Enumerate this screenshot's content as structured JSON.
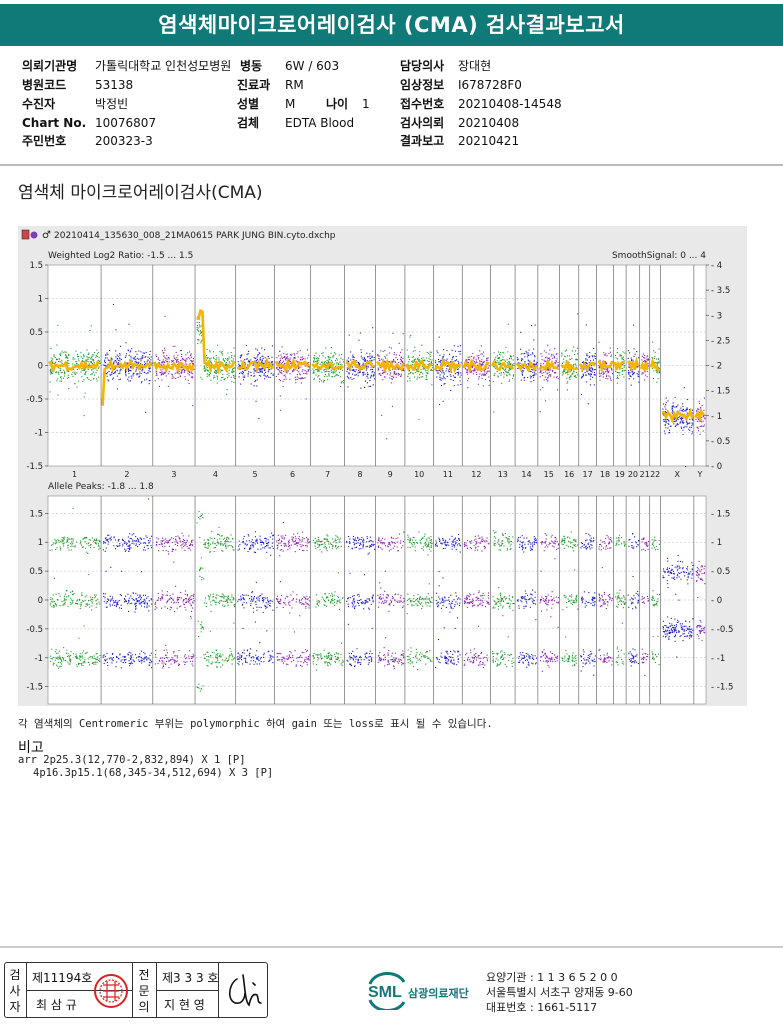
{
  "header": {
    "title": "염색체마이크로어레이검사 (CMA) 검사결과보고서"
  },
  "patient_info": {
    "institution_label": "의뢰기관명",
    "institution": "가톨릭대학교 인천성모병원",
    "ward_label": "병동",
    "ward": "6W / 603",
    "doctor_label": "담당의사",
    "doctor": "장대현",
    "hospital_code_label": "병원코드",
    "hospital_code": "53138",
    "department_label": "진료과",
    "department": "RM",
    "clinical_label": "임상정보",
    "clinical": "I678728F0",
    "patient_label": "수진자",
    "patient": "박정빈",
    "sex_label": "성별",
    "sex": "M",
    "age_label": "나이",
    "age": "1",
    "receipt_label": "접수번호",
    "receipt": "20210408-14548",
    "chart_label": "Chart No.",
    "chart_no": "10076807",
    "specimen_label": "검체",
    "specimen": "EDTA Blood",
    "request_label": "검사의뢰",
    "request_date": "20210408",
    "id_label": "주민번호",
    "id_no": "200323-3",
    "report_label": "결과보고",
    "report_date": "20210421"
  },
  "section_title": "염색체 마이크로어레이검사(CMA)",
  "chart_data": {
    "type": "scatter",
    "filename": "20210414_135630_008_21MA0615 PARK JUNG BIN.cyto.dxchp",
    "top_panel": {
      "title": "Weighted Log2 Ratio: -1.5 ... 1.5",
      "right_title": "SmoothSignal: 0 ... 4",
      "ylim": [
        -1.5,
        1.5
      ],
      "yticks": [
        "1.5",
        "1",
        "0.5",
        "0",
        "-0.5",
        "-1",
        "-1.5"
      ],
      "right_lim": [
        0,
        4
      ],
      "right_ticks": [
        "4",
        "3.5",
        "3",
        "2.5",
        "2",
        "1.5",
        "1",
        "0.5",
        "0"
      ]
    },
    "bottom_panel": {
      "title": "Allele Peaks: -1.8 ... 1.8",
      "ylim": [
        -1.8,
        1.8
      ],
      "yticks": [
        "1.5",
        "1",
        "0.5",
        "0",
        "-0.5",
        "-1",
        "-1.5"
      ]
    },
    "chromosomes": [
      "1",
      "2",
      "3",
      "4",
      "5",
      "6",
      "7",
      "8",
      "9",
      "10",
      "11",
      "12",
      "13",
      "14",
      "15",
      "16",
      "17",
      "18",
      "19",
      "20",
      "21",
      "22",
      "X",
      "Y"
    ],
    "chrom_sizes": [
      249,
      243,
      198,
      191,
      181,
      171,
      159,
      145,
      138,
      134,
      135,
      133,
      115,
      107,
      102,
      90,
      83,
      80,
      59,
      64,
      47,
      51,
      156,
      57
    ],
    "series_colors": [
      "#1f9a2a",
      "#1a1ac8",
      "#8a1fae"
    ],
    "smooth_color": "#f4b400",
    "copy_number": [
      2,
      2,
      2,
      2,
      2,
      2,
      2,
      2,
      2,
      2,
      2,
      2,
      2,
      2,
      2,
      2,
      2,
      2,
      2,
      2,
      2,
      2,
      1,
      1
    ],
    "gains": [
      {
        "chromosome": "2",
        "start_mb": 0.0,
        "end_mb": 2.8,
        "copy": 1
      },
      {
        "chromosome": "4",
        "start_mb": 0.07,
        "end_mb": 34.5,
        "copy": 3
      }
    ]
  },
  "note": "각 염색체의 Centromeric 부위는 polymorphic 하여 gain 또는 loss로 표시 될 수 있습니다.",
  "remark": {
    "title": "비고",
    "line1": "arr 2p25.3(12,770-2,832,894) X 1 [P]",
    "line2": "4p16.3p15.1(68,345-34,512,694) X 3 [P]"
  },
  "signature": {
    "examiner_label": "검사자",
    "examiner_no": "제11194호",
    "examiner_name": "최 삼 규",
    "specialist_label": "전문의",
    "specialist_no": "제3 3 3 호",
    "specialist_name": "지 현 영"
  },
  "org": {
    "logo_text": "SML",
    "name": "삼광의료재단",
    "code_line": "요양기관 : 1 1 3 6 5 2 0 0",
    "address": "서울특별시 서초구 양재동 9-60",
    "phone": "대표번호 : 1661-5117"
  }
}
